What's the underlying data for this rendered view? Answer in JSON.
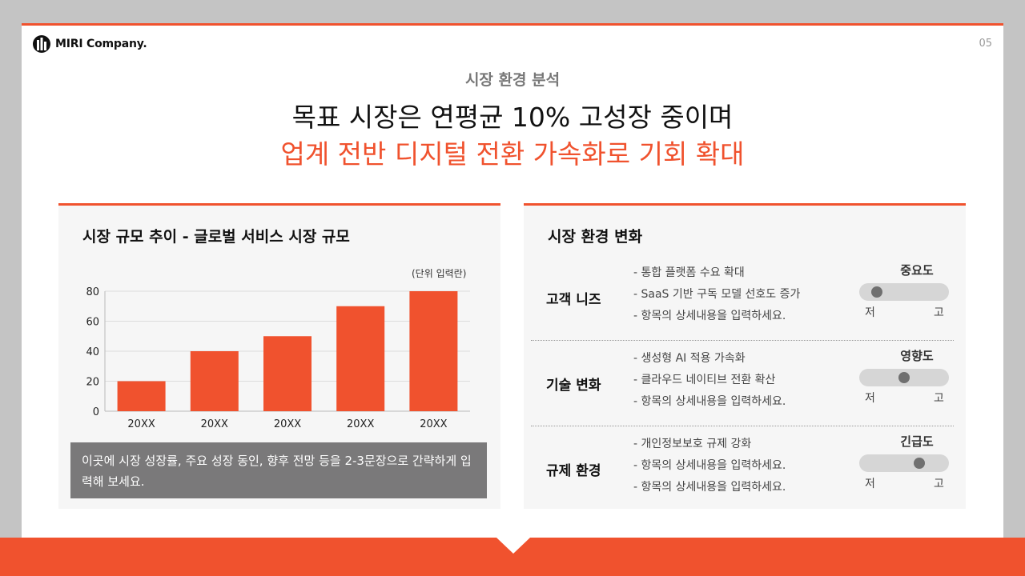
{
  "brand": {
    "name": "MIRI Company."
  },
  "page_number": "05",
  "section_label": "시장 환경 분석",
  "headline": {
    "line1": "목표 시장은 연평균 10% 고성장 중이며",
    "line2": "업계 전반 디지털 전환 가속화로 기회 확대"
  },
  "colors": {
    "accent": "#f0522e",
    "bar": "#f0522e",
    "caption_bg": "#7a797a",
    "panel_bg": "#f6f6f6"
  },
  "market_panel": {
    "title": "시장 규모 추이 - 글로벌 서비스 시장 규모",
    "unit_note": "(단위 입력란)",
    "caption": "이곳에 시장 성장률, 주요 성장 동인, 향후 전망 등을 2-3문장으로 간략하게 입력해 보세요."
  },
  "chart_data": {
    "type": "bar",
    "categories": [
      "20XX",
      "20XX",
      "20XX",
      "20XX",
      "20XX"
    ],
    "values": [
      20,
      40,
      50,
      70,
      80
    ],
    "ylim": [
      0,
      80
    ],
    "yticks": [
      0,
      20,
      40,
      60,
      80
    ],
    "grid": true,
    "title": "",
    "xlabel": "",
    "ylabel": ""
  },
  "env_panel": {
    "title": "시장 환경 변화",
    "rows": [
      {
        "title": "고객 니즈",
        "bullets": [
          "통합 플랫폼 수요 확대",
          "SaaS 기반 구독 모델 선호도 증가",
          "항목의 상세내용을 입력하세요."
        ],
        "meter_label": "중요도",
        "level": 0.1,
        "low": "저",
        "high": "고"
      },
      {
        "title": "기술 변화",
        "bullets": [
          "생성형 AI 적용 가속화",
          "클라우드 네이티브 전환 확산",
          "항목의 상세내용을 입력하세요."
        ],
        "meter_label": "영향도",
        "level": 0.5,
        "low": "저",
        "high": "고"
      },
      {
        "title": "규제 환경",
        "bullets": [
          "개인정보보호 규제 강화",
          "항목의 상세내용을 입력하세요.",
          "항목의 상세내용을 입력하세요."
        ],
        "meter_label": "긴급도",
        "level": 0.72,
        "low": "저",
        "high": "고"
      }
    ]
  }
}
